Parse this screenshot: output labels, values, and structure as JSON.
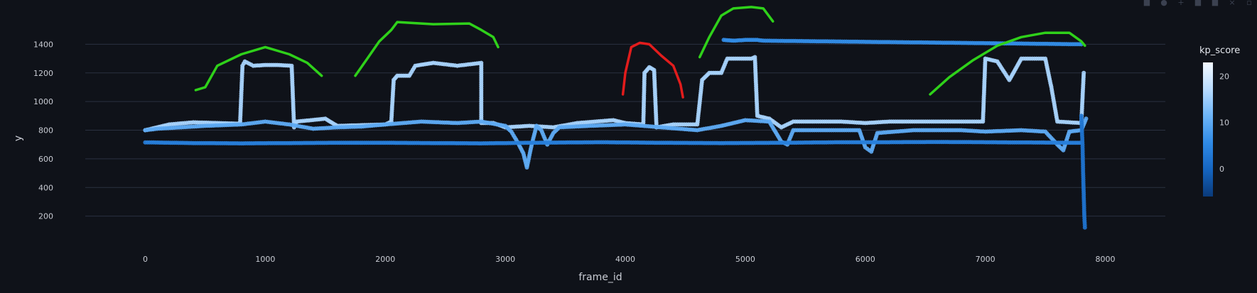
{
  "chart_data": {
    "type": "scatter",
    "title": "",
    "xlabel": "frame_id",
    "ylabel": "y",
    "xlim": [
      -500,
      8500
    ],
    "ylim": [
      0,
      1600
    ],
    "x_ticks": [
      0,
      1000,
      2000,
      3000,
      4000,
      5000,
      6000,
      7000,
      8000
    ],
    "y_ticks": [
      200,
      400,
      600,
      800,
      1000,
      1200,
      1400
    ],
    "grid": true,
    "colorbar": {
      "title": "kp_score",
      "ticks": [
        0,
        10,
        20
      ],
      "range": [
        -6,
        23
      ],
      "colorscale": [
        "#0a3a7a",
        "#1565c0",
        "#2f8ae6",
        "#6cb4f7",
        "#b9dcff",
        "#f4f9ff"
      ]
    },
    "series": [
      {
        "kind": "upper-track",
        "kp_score": 16,
        "points": [
          [
            0,
            800
          ],
          [
            200,
            840
          ],
          [
            400,
            855
          ],
          [
            600,
            850
          ],
          [
            790,
            845
          ],
          [
            810,
            1250
          ],
          [
            830,
            1280
          ],
          [
            900,
            1250
          ],
          [
            1000,
            1255
          ],
          [
            1100,
            1255
          ],
          [
            1220,
            1250
          ],
          [
            1240,
            820
          ],
          [
            1260,
            860
          ],
          [
            1500,
            880
          ],
          [
            1600,
            830
          ],
          [
            2000,
            840
          ],
          [
            2050,
            860
          ],
          [
            2070,
            1150
          ],
          [
            2100,
            1180
          ],
          [
            2200,
            1180
          ],
          [
            2250,
            1250
          ],
          [
            2400,
            1270
          ],
          [
            2600,
            1250
          ],
          [
            2800,
            1270
          ],
          [
            2800,
            850
          ],
          [
            2900,
            850
          ],
          [
            3000,
            820
          ],
          [
            3200,
            830
          ],
          [
            3400,
            820
          ],
          [
            3600,
            850
          ],
          [
            3900,
            870
          ],
          [
            4000,
            850
          ],
          [
            4150,
            840
          ],
          [
            4160,
            1200
          ],
          [
            4200,
            1240
          ],
          [
            4240,
            1220
          ],
          [
            4260,
            820
          ],
          [
            4400,
            840
          ],
          [
            4600,
            840
          ],
          [
            4640,
            1150
          ],
          [
            4700,
            1200
          ],
          [
            4800,
            1200
          ],
          [
            4850,
            1300
          ],
          [
            4950,
            1300
          ],
          [
            5050,
            1300
          ],
          [
            5080,
            1310
          ],
          [
            5100,
            900
          ],
          [
            5200,
            880
          ],
          [
            5300,
            820
          ],
          [
            5400,
            860
          ],
          [
            5800,
            860
          ],
          [
            6000,
            850
          ],
          [
            6200,
            860
          ],
          [
            6800,
            860
          ],
          [
            6980,
            860
          ],
          [
            7000,
            1300
          ],
          [
            7100,
            1280
          ],
          [
            7200,
            1150
          ],
          [
            7300,
            1300
          ],
          [
            7500,
            1300
          ],
          [
            7550,
            1100
          ],
          [
            7600,
            860
          ],
          [
            7800,
            850
          ],
          [
            7820,
            1200
          ]
        ]
      },
      {
        "kind": "lower-track",
        "kp_score": 10,
        "points": [
          [
            0,
            800
          ],
          [
            100,
            810
          ],
          [
            300,
            820
          ],
          [
            500,
            830
          ],
          [
            800,
            840
          ],
          [
            1000,
            860
          ],
          [
            1200,
            840
          ],
          [
            1400,
            810
          ],
          [
            1600,
            820
          ],
          [
            1800,
            825
          ],
          [
            2000,
            840
          ],
          [
            2300,
            860
          ],
          [
            2600,
            850
          ],
          [
            2800,
            860
          ],
          [
            3000,
            830
          ],
          [
            3050,
            790
          ],
          [
            3100,
            720
          ],
          [
            3150,
            640
          ],
          [
            3180,
            540
          ],
          [
            3220,
            700
          ],
          [
            3260,
            830
          ],
          [
            3300,
            800
          ],
          [
            3350,
            700
          ],
          [
            3400,
            780
          ],
          [
            3450,
            820
          ],
          [
            3700,
            830
          ],
          [
            4000,
            840
          ],
          [
            4300,
            820
          ],
          [
            4600,
            800
          ],
          [
            4800,
            830
          ],
          [
            5000,
            870
          ],
          [
            5200,
            860
          ],
          [
            5300,
            720
          ],
          [
            5350,
            700
          ],
          [
            5400,
            800
          ],
          [
            5700,
            800
          ],
          [
            5950,
            800
          ],
          [
            6000,
            680
          ],
          [
            6050,
            650
          ],
          [
            6100,
            780
          ],
          [
            6400,
            800
          ],
          [
            6800,
            800
          ],
          [
            7000,
            790
          ],
          [
            7300,
            800
          ],
          [
            7500,
            790
          ],
          [
            7600,
            700
          ],
          [
            7650,
            660
          ],
          [
            7700,
            790
          ],
          [
            7800,
            800
          ],
          [
            7840,
            880
          ]
        ]
      },
      {
        "kind": "baseline-track",
        "kp_score": 4,
        "points": [
          [
            0,
            715
          ],
          [
            400,
            710
          ],
          [
            800,
            708
          ],
          [
            1200,
            710
          ],
          [
            1600,
            712
          ],
          [
            2000,
            712
          ],
          [
            2400,
            710
          ],
          [
            2800,
            708
          ],
          [
            3200,
            712
          ],
          [
            3800,
            716
          ],
          [
            4300,
            712
          ],
          [
            4800,
            710
          ],
          [
            5300,
            712
          ],
          [
            5800,
            716
          ],
          [
            6200,
            716
          ],
          [
            6600,
            718
          ],
          [
            7000,
            716
          ],
          [
            7400,
            714
          ],
          [
            7800,
            712
          ]
        ]
      },
      {
        "kind": "drop-track",
        "kp_score": 2,
        "points": [
          [
            7800,
            900
          ],
          [
            7810,
            700
          ],
          [
            7815,
            500
          ],
          [
            7820,
            350
          ],
          [
            7825,
            200
          ],
          [
            7830,
            120
          ]
        ]
      },
      {
        "kind": "sparse-high",
        "kp_score": 6,
        "points": [
          [
            4820,
            1430
          ],
          [
            4900,
            1425
          ],
          [
            5000,
            1430
          ],
          [
            5100,
            1430
          ],
          [
            5150,
            1425
          ],
          [
            7800,
            1400
          ]
        ]
      }
    ]
  },
  "annotations": [
    {
      "color": "#2fd11a",
      "points": [
        [
          420,
          1080
        ],
        [
          500,
          1100
        ],
        [
          600,
          1250
        ],
        [
          800,
          1330
        ],
        [
          1000,
          1380
        ],
        [
          1200,
          1330
        ],
        [
          1350,
          1270
        ],
        [
          1470,
          1180
        ]
      ]
    },
    {
      "color": "#2fd11a",
      "points": [
        [
          1750,
          1180
        ],
        [
          1850,
          1300
        ],
        [
          1950,
          1420
        ],
        [
          2050,
          1500
        ],
        [
          2100,
          1555
        ],
        [
          2400,
          1540
        ],
        [
          2700,
          1545
        ],
        [
          2800,
          1500
        ],
        [
          2900,
          1450
        ],
        [
          2940,
          1380
        ]
      ]
    },
    {
      "color": "#e21c1c",
      "points": [
        [
          3980,
          1050
        ],
        [
          4000,
          1200
        ],
        [
          4050,
          1380
        ],
        [
          4120,
          1410
        ],
        [
          4200,
          1400
        ],
        [
          4300,
          1320
        ],
        [
          4400,
          1250
        ],
        [
          4460,
          1120
        ],
        [
          4480,
          1030
        ]
      ]
    },
    {
      "color": "#2fd11a",
      "points": [
        [
          4620,
          1310
        ],
        [
          4700,
          1450
        ],
        [
          4800,
          1600
        ],
        [
          4900,
          1650
        ],
        [
          5050,
          1660
        ],
        [
          5150,
          1650
        ],
        [
          5230,
          1560
        ]
      ]
    },
    {
      "color": "#2fd11a",
      "points": [
        [
          6540,
          1050
        ],
        [
          6700,
          1170
        ],
        [
          6900,
          1290
        ],
        [
          7100,
          1390
        ],
        [
          7300,
          1450
        ],
        [
          7500,
          1480
        ],
        [
          7700,
          1480
        ],
        [
          7800,
          1420
        ],
        [
          7830,
          1390
        ]
      ]
    }
  ],
  "modebar": {
    "icons": [
      "camera-icon",
      "zoom-icon",
      "pan-icon",
      "zoom-in-icon",
      "zoom-out-icon",
      "autoscale-icon",
      "reset-icon"
    ]
  }
}
